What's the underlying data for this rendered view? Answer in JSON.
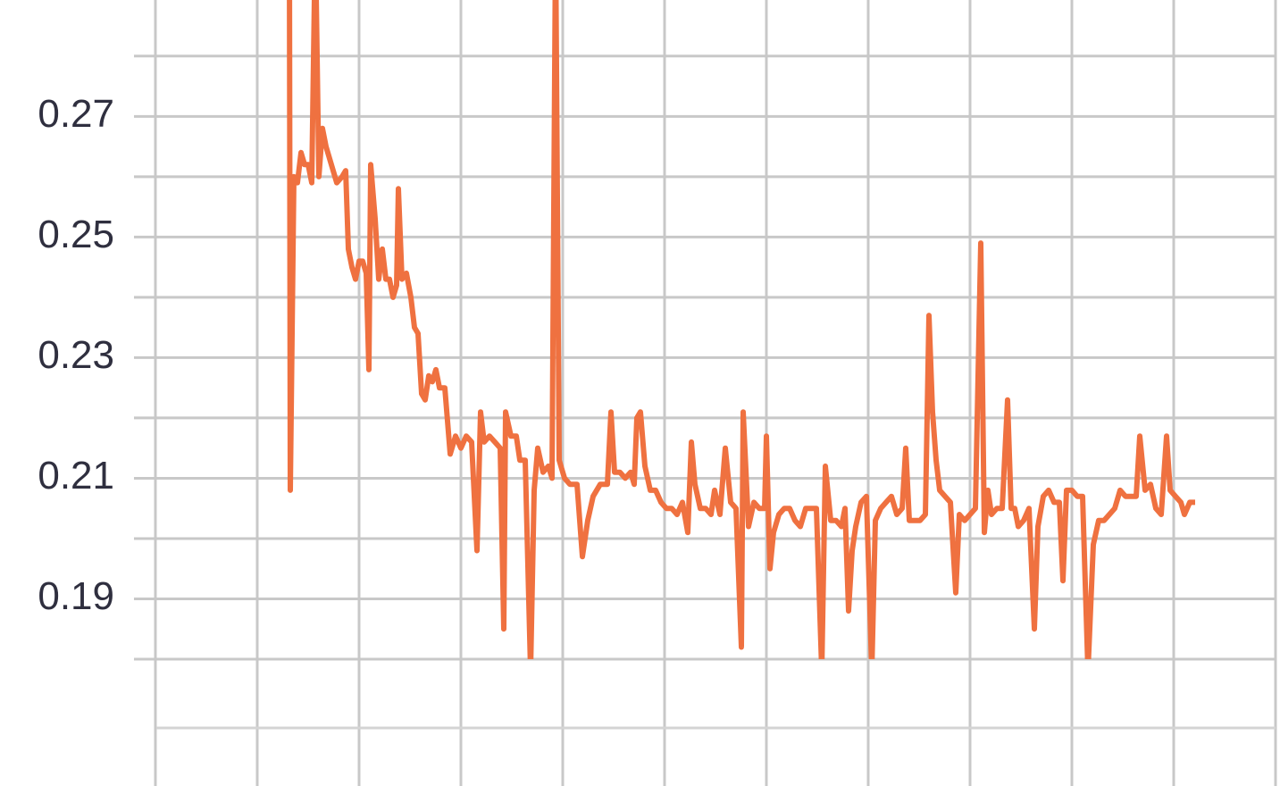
{
  "chart_data": {
    "type": "line",
    "ylim": [
      0.18,
      0.2893
    ],
    "yticks": [
      0.19,
      0.21,
      0.23,
      0.25,
      0.27
    ],
    "yminor": [
      0.18,
      0.2,
      0.22,
      0.24,
      0.26,
      0.28
    ],
    "xlim": [
      -174,
      1259
    ],
    "xgrid": [
      0,
      114,
      228,
      342,
      456,
      570,
      684,
      798,
      912,
      1026,
      1140,
      1254
    ],
    "grid": true,
    "series": [
      {
        "color": "#ef7140",
        "x": [
          150,
          151,
          155,
          159,
          163,
          167,
          171,
          175,
          179,
          183,
          187,
          191,
          195,
          199,
          203,
          209,
          213,
          216,
          220,
          224,
          228,
          232,
          236,
          239,
          241,
          246,
          250,
          254,
          258,
          262,
          266,
          270,
          272,
          276,
          281,
          286,
          290,
          294,
          298,
          302,
          306,
          310,
          314,
          318,
          324,
          330,
          336,
          342,
          348,
          354,
          360,
          364,
          368,
          374,
          380,
          386,
          390,
          392,
          398,
          404,
          408,
          414,
          420,
          424,
          428,
          434,
          440,
          444,
          448,
          452,
          458,
          464,
          472,
          478,
          484,
          490,
          498,
          506,
          510,
          514,
          520,
          526,
          532,
          536,
          539,
          543,
          548,
          554,
          560,
          566,
          572,
          578,
          584,
          590,
          596,
          600,
          604,
          610,
          616,
          622,
          626,
          632,
          638,
          644,
          650,
          656,
          658,
          664,
          670,
          676,
          682,
          684,
          688,
          692,
          698,
          704,
          710,
          716,
          722,
          728,
          734,
          740,
          746,
          750,
          756,
          762,
          768,
          772,
          776,
          780,
          784,
          790,
          796,
          802,
          806,
          812,
          818,
          824,
          830,
          836,
          840,
          844,
          850,
          856,
          862,
          866,
          870,
          874,
          878,
          884,
          890,
          896,
          900,
          906,
          912,
          918,
          924,
          928,
          932,
          936,
          942,
          948,
          954,
          958,
          962,
          966,
          972,
          978,
          984,
          988,
          994,
          1000,
          1006,
          1012,
          1016,
          1020,
          1026,
          1032,
          1038,
          1044,
          1050,
          1056,
          1062,
          1068,
          1074,
          1080,
          1086,
          1092,
          1098,
          1102,
          1108,
          1114,
          1120,
          1126,
          1132,
          1136,
          1142,
          1148,
          1152,
          1158,
          1164
        ],
        "values": [
          0.3,
          0.208,
          0.26,
          0.259,
          0.264,
          0.262,
          0.262,
          0.259,
          0.3,
          0.26,
          0.268,
          0.265,
          0.263,
          0.261,
          0.259,
          0.26,
          0.261,
          0.248,
          0.245,
          0.243,
          0.246,
          0.246,
          0.244,
          0.228,
          0.262,
          0.253,
          0.243,
          0.248,
          0.243,
          0.243,
          0.24,
          0.242,
          0.258,
          0.243,
          0.244,
          0.24,
          0.235,
          0.234,
          0.224,
          0.223,
          0.227,
          0.226,
          0.228,
          0.225,
          0.225,
          0.214,
          0.217,
          0.215,
          0.217,
          0.216,
          0.198,
          0.221,
          0.216,
          0.217,
          0.216,
          0.215,
          0.185,
          0.221,
          0.217,
          0.217,
          0.213,
          0.213,
          0.178,
          0.208,
          0.215,
          0.211,
          0.212,
          0.21,
          0.3,
          0.213,
          0.21,
          0.209,
          0.209,
          0.197,
          0.203,
          0.207,
          0.209,
          0.209,
          0.221,
          0.211,
          0.211,
          0.21,
          0.211,
          0.209,
          0.22,
          0.221,
          0.212,
          0.208,
          0.208,
          0.206,
          0.205,
          0.205,
          0.204,
          0.206,
          0.201,
          0.216,
          0.209,
          0.205,
          0.205,
          0.204,
          0.208,
          0.204,
          0.215,
          0.206,
          0.205,
          0.182,
          0.221,
          0.202,
          0.206,
          0.205,
          0.205,
          0.217,
          0.195,
          0.201,
          0.204,
          0.205,
          0.205,
          0.203,
          0.202,
          0.205,
          0.205,
          0.205,
          0.178,
          0.212,
          0.203,
          0.203,
          0.202,
          0.205,
          0.188,
          0.198,
          0.202,
          0.206,
          0.207,
          0.178,
          0.203,
          0.205,
          0.206,
          0.207,
          0.204,
          0.205,
          0.215,
          0.203,
          0.203,
          0.203,
          0.204,
          0.237,
          0.221,
          0.213,
          0.208,
          0.207,
          0.206,
          0.191,
          0.204,
          0.203,
          0.204,
          0.205,
          0.249,
          0.201,
          0.208,
          0.204,
          0.205,
          0.205,
          0.223,
          0.205,
          0.205,
          0.202,
          0.203,
          0.205,
          0.185,
          0.202,
          0.207,
          0.208,
          0.206,
          0.206,
          0.193,
          0.208,
          0.208,
          0.207,
          0.207,
          0.178,
          0.199,
          0.203,
          0.203,
          0.204,
          0.205,
          0.208,
          0.207,
          0.207,
          0.207,
          0.217,
          0.208,
          0.209,
          0.205,
          0.204,
          0.217,
          0.208,
          0.207,
          0.206,
          0.204,
          0.206,
          0.206
        ]
      }
    ]
  }
}
